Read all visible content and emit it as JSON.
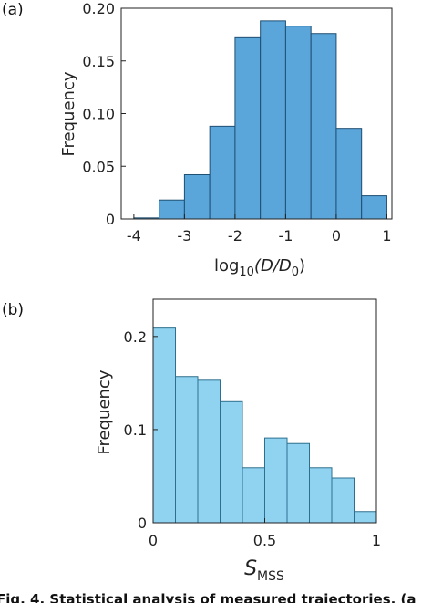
{
  "caption": "Fig. 4. Statistical analysis of measured trajectories. (a",
  "chart_data": [
    {
      "type": "bar",
      "panel_label": "(a)",
      "xlabel": "log",
      "xlabel_sub": "10",
      "xlabel_tail": "(D/D",
      "xlabel_tail_sub": "0",
      "xlabel_end": ")",
      "ylabel": "Frequency",
      "xlim": [
        -4.25,
        1.1
      ],
      "ylim": [
        0,
        0.2
      ],
      "xticks": [
        -4,
        -3,
        -2,
        -1,
        0,
        1
      ],
      "xtick_labels": [
        "-4",
        "-3",
        "-2",
        "-1",
        "0",
        "1"
      ],
      "yticks": [
        0,
        0.05,
        0.1,
        0.15,
        0.2
      ],
      "ytick_labels": [
        "0",
        "0.05",
        "0.10",
        "0.15",
        "0.20"
      ],
      "bin_edges": [
        -4,
        -3.5,
        -3,
        -2.5,
        -2,
        -1.5,
        -1,
        -0.5,
        0,
        0.5,
        1
      ],
      "values": [
        0.001,
        0.018,
        0.042,
        0.088,
        0.172,
        0.188,
        0.183,
        0.176,
        0.086,
        0.022
      ],
      "color": "#5aa5d9",
      "edge_color": "#1f4f73"
    },
    {
      "type": "bar",
      "panel_label": "(b)",
      "xlabel": "S",
      "xlabel_sub": "MSS",
      "ylabel": "Frequency",
      "xlim": [
        0,
        1
      ],
      "ylim": [
        0,
        0.24
      ],
      "xticks": [
        0,
        0.5,
        1
      ],
      "xtick_labels": [
        "0",
        "0.5",
        "1"
      ],
      "yticks": [
        0,
        0.1,
        0.2
      ],
      "ytick_labels": [
        "0",
        "0.1",
        "0.2"
      ],
      "bin_edges": [
        0,
        0.1,
        0.2,
        0.3,
        0.4,
        0.5,
        0.6,
        0.7,
        0.8,
        0.9,
        1.0
      ],
      "values": [
        0.209,
        0.157,
        0.153,
        0.13,
        0.059,
        0.091,
        0.085,
        0.059,
        0.048,
        0.012
      ],
      "color": "#8fd3f1",
      "edge_color": "#2e6f8e"
    }
  ]
}
